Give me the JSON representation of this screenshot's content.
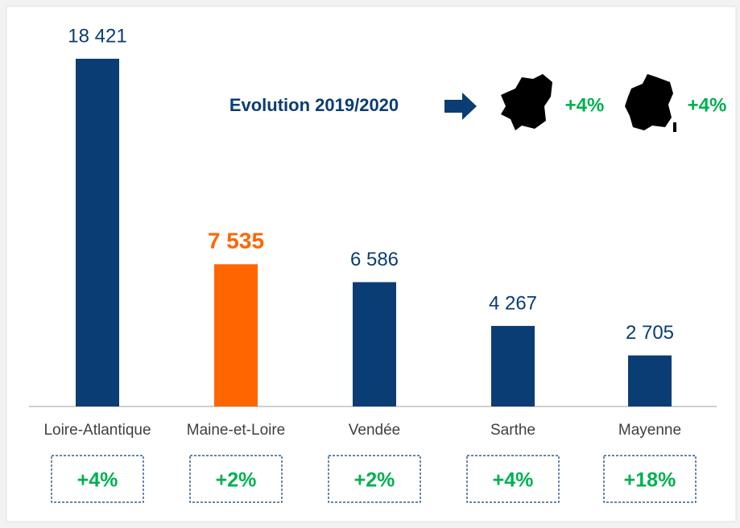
{
  "chart_data": {
    "type": "bar",
    "categories": [
      "Loire-Atlantique",
      "Maine-et-Loire",
      "Vendée",
      "Sarthe",
      "Mayenne"
    ],
    "values": [
      18421,
      7535,
      6586,
      4267,
      2705
    ],
    "value_labels": [
      "18 421",
      "7 535",
      "6 586",
      "4 267",
      "2 705"
    ],
    "colors": [
      "#0a3d73",
      "#ff6600",
      "#0a3d73",
      "#0a3d73",
      "#0a3d73"
    ],
    "highlight": 1,
    "evolution": [
      "+4%",
      "+2%",
      "+2%",
      "+4%",
      "+18%"
    ],
    "header": {
      "label": "Evolution 2019/2020",
      "region": "+4%",
      "country": "+4%"
    }
  }
}
